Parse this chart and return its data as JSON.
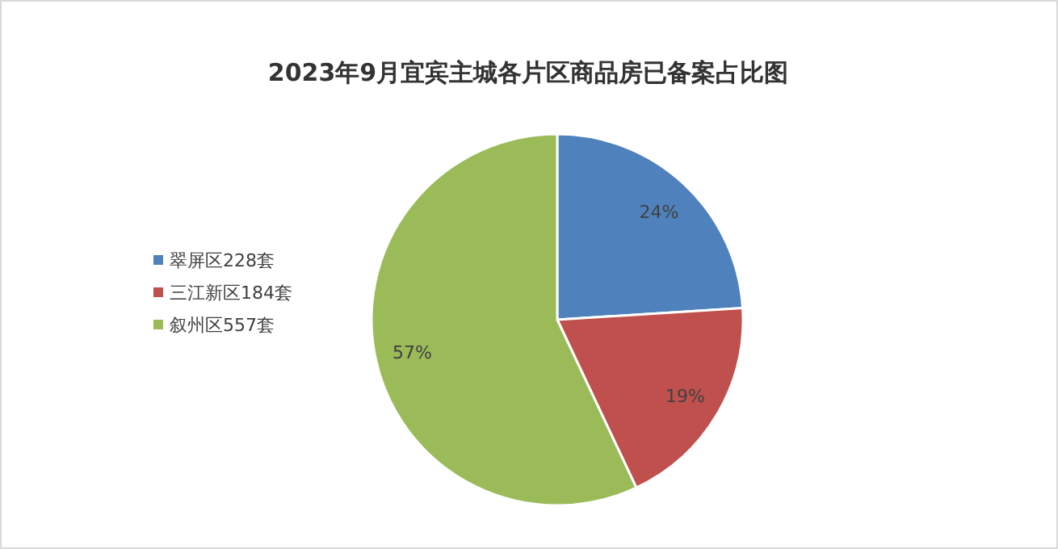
{
  "chart_data": {
    "type": "pie",
    "title": "2023年9月宜宾主城各片区商品房已备案占比图",
    "categories": [
      "翠屏区228套",
      "三江新区184套",
      "叙州区557套"
    ],
    "values": [
      24,
      19,
      57
    ],
    "colors": [
      "#4f81bd",
      "#c0504d",
      "#9bbb59"
    ],
    "value_labels": [
      "24%",
      "19%",
      "57%"
    ],
    "legend": "left"
  }
}
